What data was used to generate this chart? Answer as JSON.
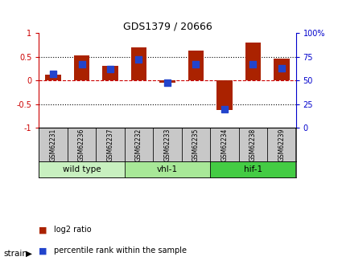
{
  "title": "GDS1379 / 20666",
  "samples": [
    "GSM62231",
    "GSM62236",
    "GSM62237",
    "GSM62232",
    "GSM62233",
    "GSM62235",
    "GSM62234",
    "GSM62238",
    "GSM62239"
  ],
  "log2_ratio": [
    0.12,
    0.54,
    0.31,
    0.7,
    -0.05,
    0.63,
    -0.62,
    0.8,
    0.47
  ],
  "percentile": [
    57,
    67,
    62,
    72,
    48,
    67,
    20,
    67,
    63
  ],
  "groups": [
    {
      "label": "wild type",
      "start": 0,
      "end": 3,
      "color": "#c8f0c0"
    },
    {
      "label": "vhl-1",
      "start": 3,
      "end": 6,
      "color": "#a8e898"
    },
    {
      "label": "hif-1",
      "start": 6,
      "end": 9,
      "color": "#44cc44"
    }
  ],
  "ylim_left": [
    -1,
    1
  ],
  "ylim_right": [
    0,
    100
  ],
  "yticks_left": [
    -1,
    -0.5,
    0,
    0.5,
    1
  ],
  "ytick_labels_left": [
    "-1",
    "-0.5",
    "0",
    "0.5",
    "1"
  ],
  "yticks_right": [
    0,
    25,
    50,
    75,
    100
  ],
  "ytick_labels_right": [
    "0",
    "25",
    "50",
    "75",
    "100%"
  ],
  "bar_color": "#aa2200",
  "dot_color": "#2244cc",
  "hline_color": "#cc0000",
  "grid_color": "#000000",
  "background_color": "#ffffff",
  "sample_box_color": "#c8c8c8",
  "bar_width": 0.55,
  "dot_size": 30,
  "strain_label": "strain",
  "legend_items": [
    {
      "label": "log2 ratio",
      "color": "#aa2200"
    },
    {
      "label": "percentile rank within the sample",
      "color": "#2244cc"
    }
  ]
}
